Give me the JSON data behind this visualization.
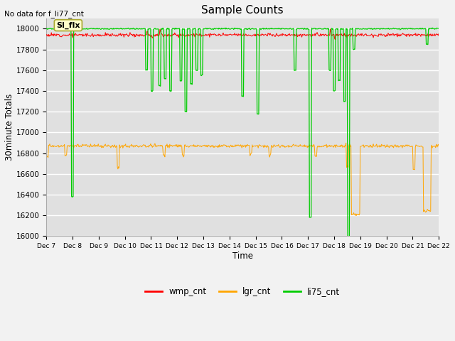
{
  "title": "Sample Counts",
  "no_data_label": "No data for f_li77_cnt",
  "si_flx_label": "SI_flx",
  "xlabel": "Time",
  "ylabel": "30minute Totals",
  "x_tick_labels": [
    "Dec 7",
    "Dec 8",
    "Dec 9",
    "Dec 10",
    "Dec 11",
    "Dec 12",
    "Dec 13",
    "Dec 14",
    "Dec 15",
    "Dec 16",
    "Dec 17",
    "Dec 18",
    "Dec 19",
    "Dec 20",
    "Dec 21",
    "Dec 22"
  ],
  "ylim": [
    16000,
    18100
  ],
  "yticks": [
    16000,
    16200,
    16400,
    16600,
    16800,
    17000,
    17200,
    17400,
    17600,
    17800,
    18000
  ],
  "wmp_base": 17940,
  "wmp_noise": 8,
  "lgr_base": 16870,
  "lgr_noise": 8,
  "li75_base": 18000,
  "colors": {
    "wmp_cnt": "#ff0000",
    "lgr_cnt": "#ffa500",
    "li75_cnt": "#00cc00",
    "background": "#e0e0e0",
    "grid": "#ffffff",
    "si_flx_bg": "#ffffcc",
    "si_flx_border": "#aaa830"
  },
  "n_points": 720,
  "legend_labels": [
    "wmp_cnt",
    "lgr_cnt",
    "li75_cnt"
  ],
  "li75_dip_positions": [
    1.0,
    3.85,
    4.05,
    4.35,
    4.55,
    4.75,
    5.15,
    5.35,
    5.55,
    5.75,
    5.95,
    7.5,
    8.1,
    9.5,
    10.1,
    10.85,
    11.0,
    11.2,
    11.4,
    11.55,
    11.75,
    14.55
  ],
  "li75_dip_depths": [
    1620,
    400,
    600,
    550,
    480,
    600,
    500,
    800,
    530,
    400,
    450,
    650,
    820,
    400,
    1820,
    400,
    600,
    500,
    700,
    2020,
    200,
    150
  ],
  "lgr_dip_positions": [
    0.05,
    0.75,
    2.75,
    4.5,
    5.25,
    7.82,
    8.55,
    10.3,
    11.5,
    11.82,
    14.05,
    14.55
  ],
  "lgr_dip_depths": [
    100,
    90,
    210,
    90,
    90,
    75,
    90,
    95,
    200,
    660,
    230,
    630
  ]
}
